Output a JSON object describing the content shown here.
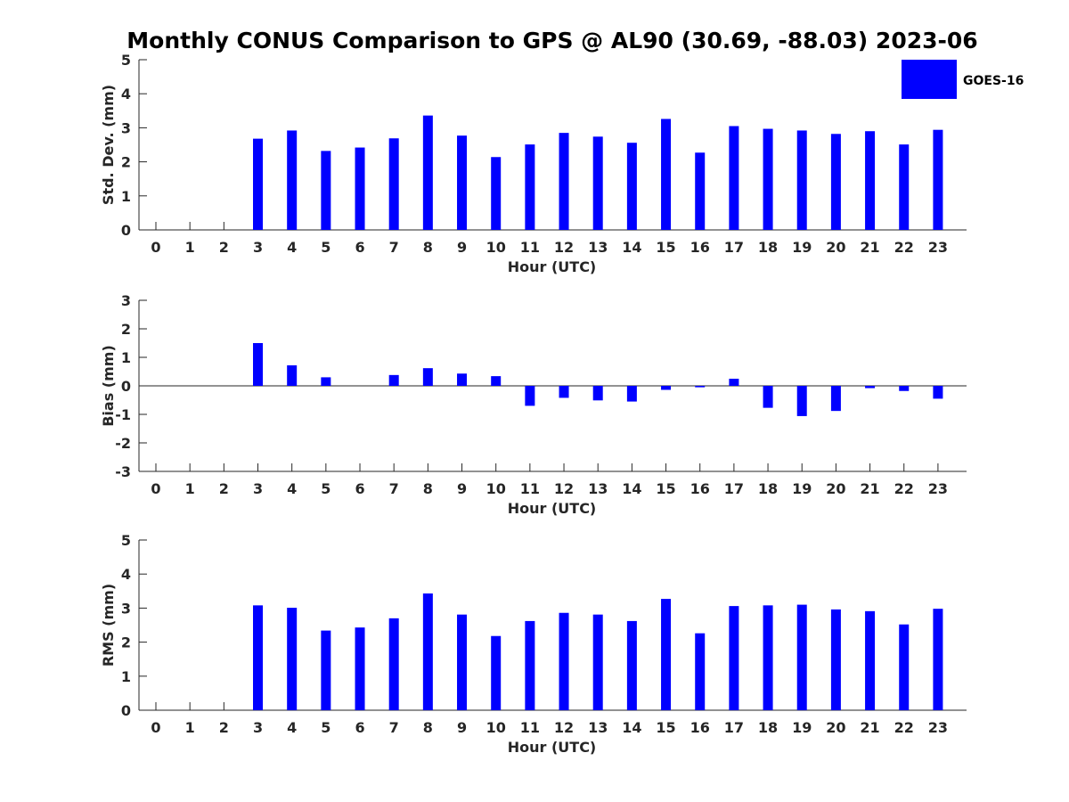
{
  "chart_data": {
    "title": "Monthly CONUS Comparison to GPS @ AL90 (30.69, -88.03) 2023-06",
    "legend": {
      "label": "GOES-16",
      "color": "#0000ff",
      "placement": "top-right"
    },
    "bar_color": "#0000ff",
    "panels": [
      {
        "type": "bar",
        "ylabel": "Std. Dev. (mm)",
        "xlabel": "Hour (UTC)",
        "ylim": [
          0,
          5
        ],
        "yticks": [
          "0",
          "1",
          "2",
          "3",
          "4",
          "5"
        ],
        "categories": [
          "0",
          "1",
          "2",
          "3",
          "4",
          "5",
          "6",
          "7",
          "8",
          "9",
          "10",
          "11",
          "12",
          "13",
          "14",
          "15",
          "16",
          "17",
          "18",
          "19",
          "20",
          "21",
          "22",
          "23"
        ],
        "values": [
          null,
          null,
          null,
          2.68,
          2.92,
          2.32,
          2.42,
          2.69,
          3.36,
          2.77,
          2.14,
          2.51,
          2.85,
          2.74,
          2.56,
          3.26,
          2.27,
          3.05,
          2.97,
          2.92,
          2.82,
          2.9,
          2.51,
          2.94
        ]
      },
      {
        "type": "bar",
        "ylabel": "Bias (mm)",
        "xlabel": "Hour (UTC)",
        "ylim": [
          -3,
          3
        ],
        "yticks": [
          "-3",
          "-2",
          "-1",
          "0",
          "1",
          "2",
          "3"
        ],
        "categories": [
          "0",
          "1",
          "2",
          "3",
          "4",
          "5",
          "6",
          "7",
          "8",
          "9",
          "10",
          "11",
          "12",
          "13",
          "14",
          "15",
          "16",
          "17",
          "18",
          "19",
          "20",
          "21",
          "22",
          "23"
        ],
        "values": [
          null,
          null,
          null,
          1.5,
          0.72,
          0.3,
          0.0,
          0.38,
          0.62,
          0.43,
          0.34,
          -0.7,
          -0.42,
          -0.51,
          -0.55,
          -0.14,
          -0.05,
          0.25,
          -0.77,
          -1.06,
          -0.88,
          -0.08,
          -0.18,
          -0.45
        ]
      },
      {
        "type": "bar",
        "ylabel": "RMS (mm)",
        "xlabel": "Hour (UTC)",
        "ylim": [
          0,
          5
        ],
        "yticks": [
          "0",
          "1",
          "2",
          "3",
          "4",
          "5"
        ],
        "categories": [
          "0",
          "1",
          "2",
          "3",
          "4",
          "5",
          "6",
          "7",
          "8",
          "9",
          "10",
          "11",
          "12",
          "13",
          "14",
          "15",
          "16",
          "17",
          "18",
          "19",
          "20",
          "21",
          "22",
          "23"
        ],
        "values": [
          null,
          null,
          null,
          3.08,
          3.01,
          2.34,
          2.43,
          2.7,
          3.43,
          2.81,
          2.18,
          2.62,
          2.86,
          2.81,
          2.62,
          3.27,
          2.26,
          3.06,
          3.08,
          3.1,
          2.96,
          2.91,
          2.52,
          2.98
        ]
      }
    ]
  }
}
